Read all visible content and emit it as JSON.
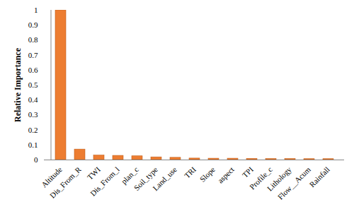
{
  "chart_data": {
    "type": "bar",
    "ylabel": "Relative Importance",
    "categories": [
      "Altitude",
      "Dis_From_R",
      "TWI",
      "Dis_From_l",
      "plan_c",
      "Soil_type",
      "Land_use",
      "TRI",
      "Slope",
      "aspect",
      "TPI",
      "Profile_c",
      "Lithology",
      "Flow__Acum",
      "Rainfall"
    ],
    "values": [
      1.0,
      0.07,
      0.03,
      0.028,
      0.025,
      0.018,
      0.015,
      0.01,
      0.009,
      0.009,
      0.008,
      0.007,
      0.007,
      0.006,
      0.006
    ],
    "color": "#ed7d31",
    "ylim": [
      0,
      1
    ],
    "yticks": [
      0,
      0.1,
      0.2,
      0.3,
      0.4,
      0.5,
      0.6,
      0.7,
      0.8,
      0.9,
      1
    ],
    "grid": false
  }
}
